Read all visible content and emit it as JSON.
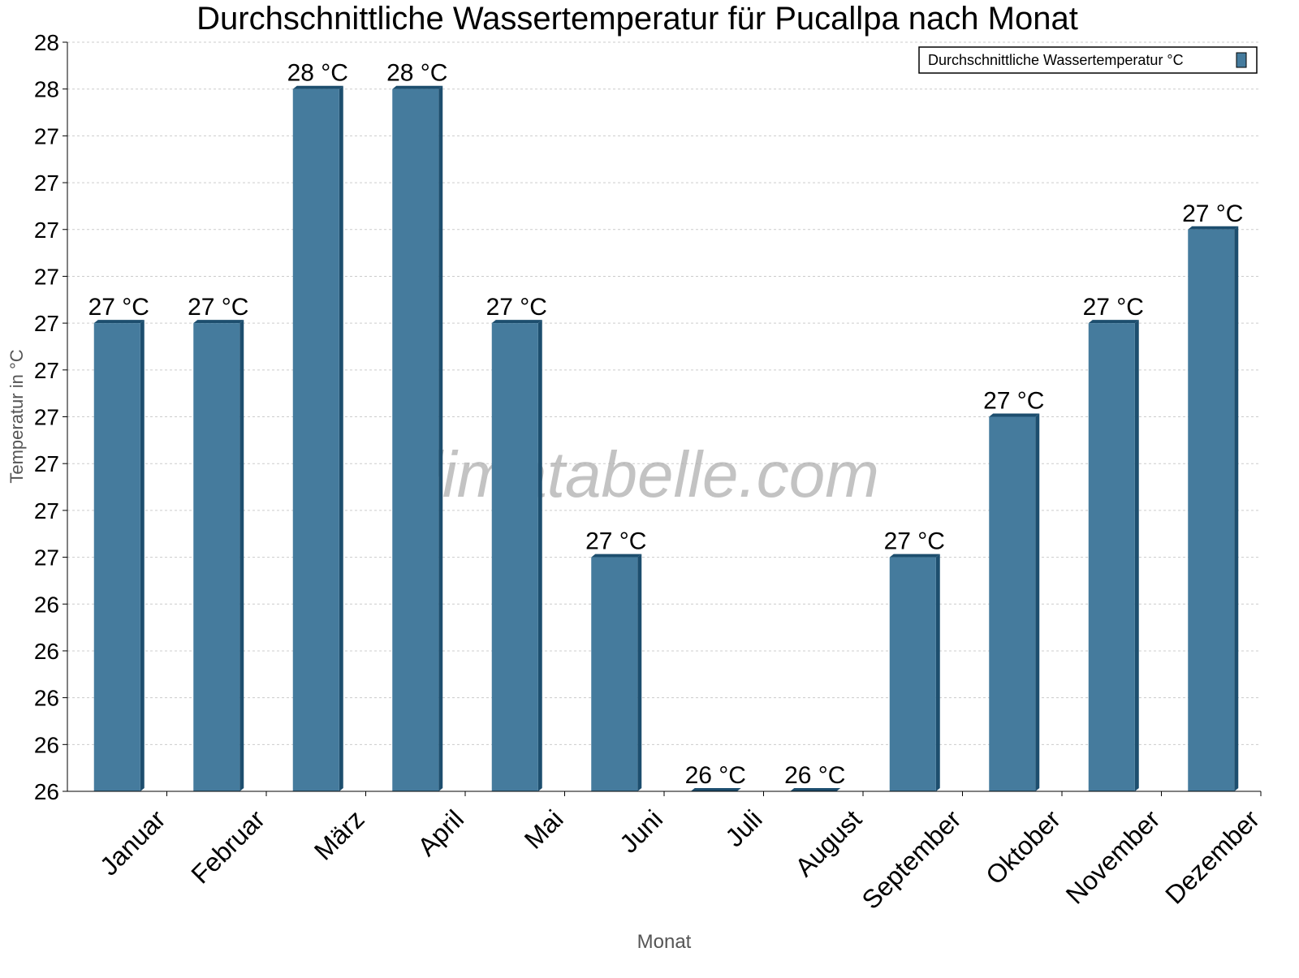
{
  "chart_data": {
    "type": "bar",
    "title": "Durchschnittliche Wassertemperatur für Pucallpa nach Monat",
    "xlabel": "Monat",
    "ylabel": "Temperatur in °C",
    "categories": [
      "Januar",
      "Februar",
      "März",
      "April",
      "Mai",
      "Juni",
      "Juli",
      "August",
      "September",
      "Oktober",
      "November",
      "Dezember"
    ],
    "series": [
      {
        "name": "Durchschnittliche Wassertemperatur °C",
        "values": [
          27.0,
          27.0,
          27.5,
          27.5,
          27.0,
          26.5,
          26.0,
          26.0,
          26.5,
          26.8,
          27.0,
          27.2
        ],
        "data_labels": [
          "27 °C",
          "27 °C",
          "28 °C",
          "28 °C",
          "27 °C",
          "27 °C",
          "26 °C",
          "26 °C",
          "27 °C",
          "27 °C",
          "27 °C",
          "27 °C"
        ]
      }
    ],
    "ylim": [
      26.0,
      27.6
    ],
    "y_ticks": [
      26.0,
      26.1,
      26.2,
      26.3,
      26.4,
      26.5,
      26.6,
      26.7,
      26.8,
      26.9,
      27.0,
      27.1,
      27.2,
      27.3,
      27.4,
      27.5,
      27.6
    ],
    "y_tick_labels": [
      "26",
      "26",
      "26",
      "26",
      "26",
      "27",
      "27",
      "27",
      "27",
      "27",
      "27",
      "27",
      "27",
      "27",
      "27",
      "28",
      "28"
    ],
    "grid": true,
    "legend_position": "top-right",
    "colors": {
      "bar": "#457b9d",
      "bar_dark": "#1d4e6e"
    },
    "watermark": "klimatabelle.com"
  }
}
